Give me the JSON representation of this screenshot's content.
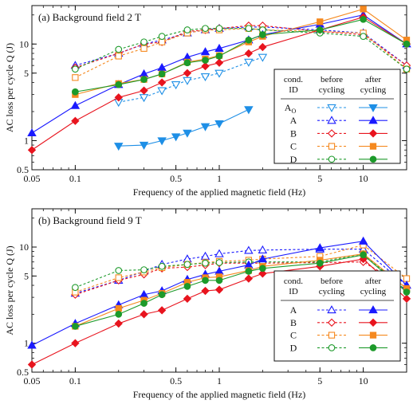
{
  "colors": {
    "Ao": "#1e8fe6",
    "A": "#1a1aff",
    "B": "#e8141e",
    "C": "#f5891f",
    "D": "#1d9a2a",
    "axis": "#111111"
  },
  "chart_data": [
    {
      "type": "line",
      "panel_label": "(a)",
      "title": "Background field 2 T",
      "xlabel": "Frequency of the applied magnetic field (Hz)",
      "ylabel": "AC loss per cycle  Q (J)",
      "xscale": "log",
      "yscale": "log",
      "xlim": [
        0.05,
        20
      ],
      "ylim": [
        0.5,
        25
      ],
      "xticks": [
        0.05,
        0.1,
        0.5,
        1,
        5,
        10
      ],
      "xtick_labels": [
        "0.05",
        "0.1",
        "0.5",
        "1",
        "5",
        "10"
      ],
      "yticks": [
        0.5,
        1,
        5,
        10
      ],
      "ytick_labels": [
        "0.5",
        "1",
        "5",
        "10"
      ],
      "legend": {
        "position": "right",
        "headers": [
          "cond.\nID",
          "before\ncycling",
          "after\ncycling"
        ],
        "rows": [
          {
            "id": "Ao",
            "label": "AO",
            "marker": "tri-down"
          },
          {
            "id": "A",
            "label": "A",
            "marker": "tri-up"
          },
          {
            "id": "B",
            "label": "B",
            "marker": "diamond"
          },
          {
            "id": "C",
            "label": "C",
            "marker": "square"
          },
          {
            "id": "D",
            "label": "D",
            "marker": "circle"
          }
        ]
      },
      "series": [
        {
          "name": "AO before cycling",
          "cond": "Ao",
          "state": "before",
          "marker": "tri-down",
          "x": [
            0.2,
            0.3,
            0.4,
            0.5,
            0.6,
            0.8,
            1.0,
            1.6,
            2.0
          ],
          "y": [
            2.5,
            2.8,
            3.3,
            3.8,
            4.2,
            4.6,
            5.0,
            6.5,
            7.3
          ]
        },
        {
          "name": "AO after cycling",
          "cond": "Ao",
          "state": "after",
          "marker": "tri-down",
          "x": [
            0.2,
            0.3,
            0.4,
            0.5,
            0.6,
            0.8,
            1.0,
            1.6
          ],
          "y": [
            0.88,
            0.9,
            1.0,
            1.1,
            1.2,
            1.4,
            1.5,
            2.1
          ]
        },
        {
          "name": "A before cycling",
          "cond": "A",
          "state": "before",
          "marker": "tri-up",
          "x": [
            0.1,
            0.2,
            0.3,
            0.4,
            0.6,
            0.8,
            1.0,
            1.6,
            2.0,
            5,
            10,
            20
          ],
          "y": [
            6.0,
            8.0,
            10.0,
            11.0,
            13.0,
            14.0,
            14.5,
            15.0,
            15.0,
            14.0,
            13.0,
            6.0
          ]
        },
        {
          "name": "A after cycling",
          "cond": "A",
          "state": "after",
          "marker": "tri-up",
          "x": [
            0.05,
            0.1,
            0.2,
            0.3,
            0.4,
            0.6,
            0.8,
            1.0,
            1.6,
            2.0,
            5,
            10,
            20
          ],
          "y": [
            1.2,
            2.3,
            3.8,
            4.9,
            5.7,
            7.3,
            8.3,
            9.0,
            11.0,
            12.5,
            16.0,
            20.0,
            10.0
          ]
        },
        {
          "name": "B before cycling",
          "cond": "B",
          "state": "before",
          "marker": "diamond",
          "x": [
            0.1,
            0.2,
            0.3,
            0.4,
            0.6,
            0.8,
            1.0,
            1.6,
            2.0,
            5,
            10,
            20
          ],
          "y": [
            5.7,
            8.0,
            10.0,
            10.5,
            13.5,
            14.0,
            14.5,
            15.5,
            15.5,
            13.5,
            12.5,
            6.0
          ]
        },
        {
          "name": "B after cycling",
          "cond": "B",
          "state": "after",
          "marker": "diamond",
          "x": [
            0.05,
            0.1,
            0.2,
            0.3,
            0.4,
            0.6,
            0.8,
            1.0,
            1.6,
            2.0,
            5,
            10,
            20
          ],
          "y": [
            0.8,
            1.6,
            2.8,
            3.3,
            4.0,
            5.0,
            5.9,
            6.4,
            8.0,
            9.3,
            14.0,
            19.0,
            10.0
          ]
        },
        {
          "name": "C before cycling",
          "cond": "C",
          "state": "before",
          "marker": "square",
          "x": [
            0.1,
            0.2,
            0.3,
            0.4,
            0.6,
            0.8,
            1.0,
            1.6,
            2.0,
            5,
            10,
            20
          ],
          "y": [
            4.5,
            7.5,
            9.0,
            10.5,
            13.0,
            14.0,
            14.0,
            14.5,
            14.0,
            13.5,
            13.0,
            5.5
          ]
        },
        {
          "name": "C after cycling",
          "cond": "C",
          "state": "after",
          "marker": "square",
          "x": [
            0.1,
            0.2,
            0.3,
            0.4,
            0.6,
            0.8,
            1.0,
            1.6,
            2.0,
            5,
            10,
            20
          ],
          "y": [
            3.0,
            3.9,
            4.3,
            4.9,
            6.5,
            7.0,
            7.6,
            10.5,
            12.0,
            17.0,
            23.0,
            11.0
          ]
        },
        {
          "name": "D before cycling",
          "cond": "D",
          "state": "before",
          "marker": "circle",
          "x": [
            0.1,
            0.2,
            0.3,
            0.4,
            0.6,
            0.8,
            1.0,
            1.6,
            2.0,
            5,
            10,
            20
          ],
          "y": [
            5.5,
            8.8,
            10.5,
            12.0,
            14.0,
            14.5,
            14.5,
            14.5,
            14.0,
            13.0,
            12.0,
            5.5
          ]
        },
        {
          "name": "D after cycling",
          "cond": "D",
          "state": "after",
          "marker": "circle",
          "x": [
            0.1,
            0.2,
            0.3,
            0.4,
            0.6,
            0.8,
            1.0,
            1.6,
            2.0,
            5,
            10,
            20
          ],
          "y": [
            3.2,
            3.8,
            4.3,
            4.9,
            6.4,
            6.8,
            7.5,
            11.0,
            12.5,
            14.0,
            18.0,
            10.0
          ]
        }
      ]
    },
    {
      "type": "line",
      "panel_label": "(b)",
      "title": "Background field 9 T",
      "xlabel": "Frequency of the applied magnetic field (Hz)",
      "ylabel": "AC loss per cycle  Q (J)",
      "xscale": "log",
      "yscale": "log",
      "xlim": [
        0.05,
        20
      ],
      "ylim": [
        0.5,
        25
      ],
      "xticks": [
        0.05,
        0.1,
        0.5,
        1,
        5,
        10
      ],
      "xtick_labels": [
        "0.05",
        "0.1",
        "0.5",
        "1",
        "5",
        "10"
      ],
      "yticks": [
        0.5,
        1,
        5,
        10
      ],
      "ytick_labels": [
        "0.5",
        "1",
        "5",
        "10"
      ],
      "legend": {
        "position": "right",
        "headers": [
          "cond.\nID",
          "before\ncycling",
          "after\ncycling"
        ],
        "rows": [
          {
            "id": "A",
            "label": "A",
            "marker": "tri-up"
          },
          {
            "id": "B",
            "label": "B",
            "marker": "diamond"
          },
          {
            "id": "C",
            "label": "C",
            "marker": "square"
          },
          {
            "id": "D",
            "label": "D",
            "marker": "circle"
          }
        ]
      },
      "series": [
        {
          "name": "A before cycling",
          "cond": "A",
          "state": "before",
          "marker": "tri-up",
          "x": [
            0.1,
            0.2,
            0.3,
            0.4,
            0.6,
            0.8,
            1.0,
            1.6,
            2.0,
            5,
            10,
            20
          ],
          "y": [
            3.3,
            4.5,
            5.6,
            6.6,
            7.5,
            8.0,
            8.5,
            9.2,
            9.3,
            9.5,
            9.5,
            4.0
          ]
        },
        {
          "name": "A after cycling",
          "cond": "A",
          "state": "after",
          "marker": "tri-up",
          "x": [
            0.05,
            0.1,
            0.2,
            0.3,
            0.4,
            0.6,
            0.8,
            1.0,
            1.6,
            2.0,
            5,
            10,
            20
          ],
          "y": [
            0.95,
            1.6,
            2.5,
            3.2,
            3.5,
            4.6,
            5.2,
            5.6,
            6.5,
            7.5,
            9.8,
            11.5,
            4.0
          ]
        },
        {
          "name": "B before cycling",
          "cond": "B",
          "state": "before",
          "marker": "diamond",
          "x": [
            0.1,
            0.2,
            0.3,
            0.4,
            0.6,
            0.8,
            1.0,
            1.6,
            2.0,
            5,
            10,
            20
          ],
          "y": [
            3.2,
            4.5,
            5.2,
            6.0,
            6.2,
            6.5,
            6.8,
            6.8,
            6.8,
            6.9,
            7.0,
            3.8
          ]
        },
        {
          "name": "B after cycling",
          "cond": "B",
          "state": "after",
          "marker": "diamond",
          "x": [
            0.05,
            0.1,
            0.2,
            0.3,
            0.4,
            0.6,
            0.8,
            1.0,
            1.6,
            2.0,
            5,
            10,
            20
          ],
          "y": [
            0.6,
            1.0,
            1.6,
            2.0,
            2.2,
            2.9,
            3.5,
            3.6,
            4.7,
            5.3,
            6.3,
            7.5,
            2.9
          ]
        },
        {
          "name": "C before cycling",
          "cond": "C",
          "state": "before",
          "marker": "square",
          "x": [
            0.1,
            0.2,
            0.3,
            0.4,
            0.6,
            0.8,
            1.0,
            1.6,
            2.0,
            5,
            10,
            20
          ],
          "y": [
            3.4,
            4.8,
            5.5,
            6.1,
            6.6,
            6.9,
            7.1,
            7.3,
            7.5,
            8.0,
            10.5,
            4.7
          ]
        },
        {
          "name": "C after cycling",
          "cond": "C",
          "state": "after",
          "marker": "square",
          "x": [
            0.1,
            0.2,
            0.3,
            0.4,
            0.6,
            0.8,
            1.0,
            1.6,
            2.0,
            5,
            10,
            20
          ],
          "y": [
            1.5,
            2.3,
            2.8,
            3.3,
            4.3,
            4.8,
            4.9,
            5.7,
            6.3,
            7.3,
            8.5,
            3.7
          ]
        },
        {
          "name": "D before cycling",
          "cond": "D",
          "state": "before",
          "marker": "circle",
          "x": [
            0.1,
            0.2,
            0.3,
            0.4,
            0.6,
            0.8,
            1.0,
            1.6,
            2.0,
            5,
            10,
            20
          ],
          "y": [
            3.8,
            5.7,
            5.8,
            6.3,
            6.6,
            6.8,
            6.9,
            7.0,
            7.0,
            7.0,
            8.5,
            3.5
          ]
        },
        {
          "name": "D after cycling",
          "cond": "D",
          "state": "after",
          "marker": "circle",
          "x": [
            0.1,
            0.2,
            0.3,
            0.4,
            0.6,
            0.8,
            1.0,
            1.6,
            2.0,
            5,
            10,
            20
          ],
          "y": [
            1.5,
            2.0,
            2.6,
            3.2,
            3.9,
            4.5,
            4.5,
            5.6,
            6.0,
            6.8,
            8.3,
            3.4
          ]
        }
      ]
    }
  ]
}
